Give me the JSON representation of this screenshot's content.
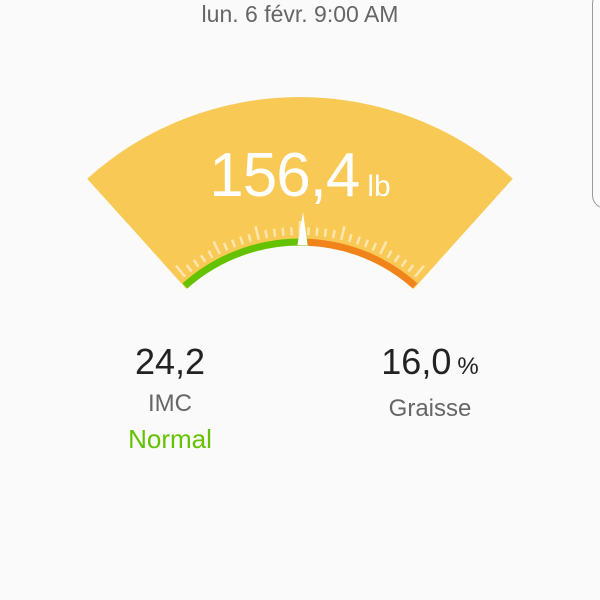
{
  "header": {
    "date": "lun. 6 févr. 9:00 AM"
  },
  "gauge": {
    "weight": "156,4",
    "unit": "lb",
    "needle_position": 0.51,
    "colors": {
      "background": "#f8c954",
      "low": "#64c200",
      "high": "#f0841a",
      "needle": "#ffffff"
    }
  },
  "stats": [
    {
      "value": "24,2",
      "unit": "",
      "label": "IMC",
      "status": "Normal"
    },
    {
      "value": "16,0",
      "unit": "%",
      "label": "Graisse",
      "status": ""
    }
  ]
}
